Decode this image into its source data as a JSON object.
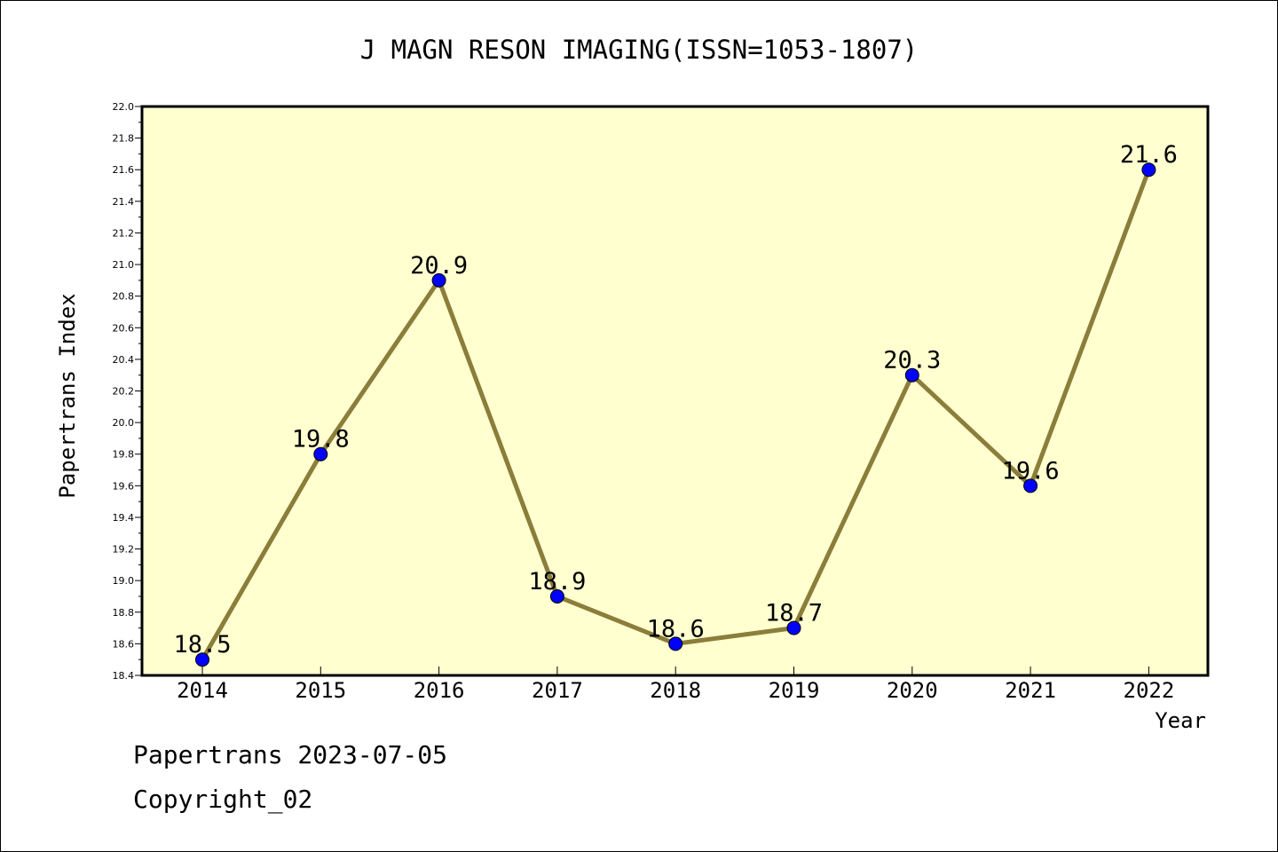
{
  "chart_data": {
    "type": "line",
    "title": "J MAGN RESON IMAGING(ISSN=1053-1807)",
    "xlabel": "Year",
    "ylabel": "Papertrans Index",
    "categories": [
      "2014",
      "2015",
      "2016",
      "2017",
      "2018",
      "2019",
      "2020",
      "2021",
      "2022"
    ],
    "values": [
      18.5,
      19.8,
      20.9,
      18.9,
      18.6,
      18.7,
      20.3,
      19.6,
      21.6
    ],
    "data_labels": [
      "18.5",
      "19.8",
      "20.9",
      "18.9",
      "18.6",
      "18.7",
      "20.3",
      "19.6",
      "21.6"
    ],
    "ylim": [
      18.4,
      22.0
    ],
    "yticks": [
      "18.4",
      "18.6",
      "18.8",
      "19.0",
      "19.2",
      "19.4",
      "19.6",
      "19.8",
      "20.0",
      "20.2",
      "20.4",
      "20.6",
      "20.8",
      "21.0",
      "21.2",
      "21.4",
      "21.6",
      "21.8",
      "22.0"
    ],
    "grid": false,
    "legend": "none",
    "colors": {
      "plot_background": "#ffffd0",
      "line": "#8b7d3a",
      "marker": "#0000ff"
    }
  },
  "footer": {
    "line1": "Papertrans 2023-07-05",
    "line2": "Copyright_02"
  }
}
